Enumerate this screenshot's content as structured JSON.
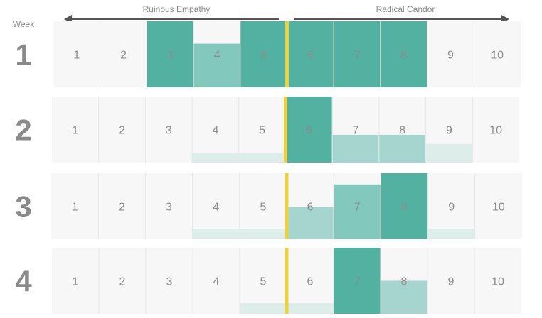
{
  "chart_data": {
    "type": "bar",
    "y_label": "Week",
    "left_label": "Ruinous Empathy",
    "right_label": "Radical Candor",
    "categories": [
      "1",
      "2",
      "3",
      "4",
      "5",
      "6",
      "7",
      "8",
      "9",
      "10"
    ],
    "ylim": [
      0,
      1
    ],
    "divider_between": [
      5,
      6
    ],
    "series": [
      {
        "week": "1",
        "values": [
          0,
          0,
          1.0,
          0.66,
          1.0,
          1.0,
          1.0,
          1.0,
          0,
          0
        ]
      },
      {
        "week": "2",
        "values": [
          0,
          0,
          0,
          0.14,
          0.14,
          1.0,
          0.42,
          0.42,
          0.28,
          0
        ]
      },
      {
        "week": "3",
        "values": [
          0,
          0,
          0,
          0.16,
          0.16,
          0.49,
          0.83,
          1.0,
          0.16,
          0
        ]
      },
      {
        "week": "4",
        "values": [
          0,
          0,
          0,
          0,
          0.16,
          0.16,
          1.0,
          0.5,
          0,
          0
        ]
      }
    ]
  },
  "colors": {
    "cell_bg": "#f7f7f7",
    "cell_border": "#e6e6e6",
    "divider": "#f2d03a",
    "arrow": "#555555",
    "full": "#52b1a1",
    "medium": "#83c8bd",
    "light": "#a5d5ce",
    "faint": "#dcedea"
  }
}
